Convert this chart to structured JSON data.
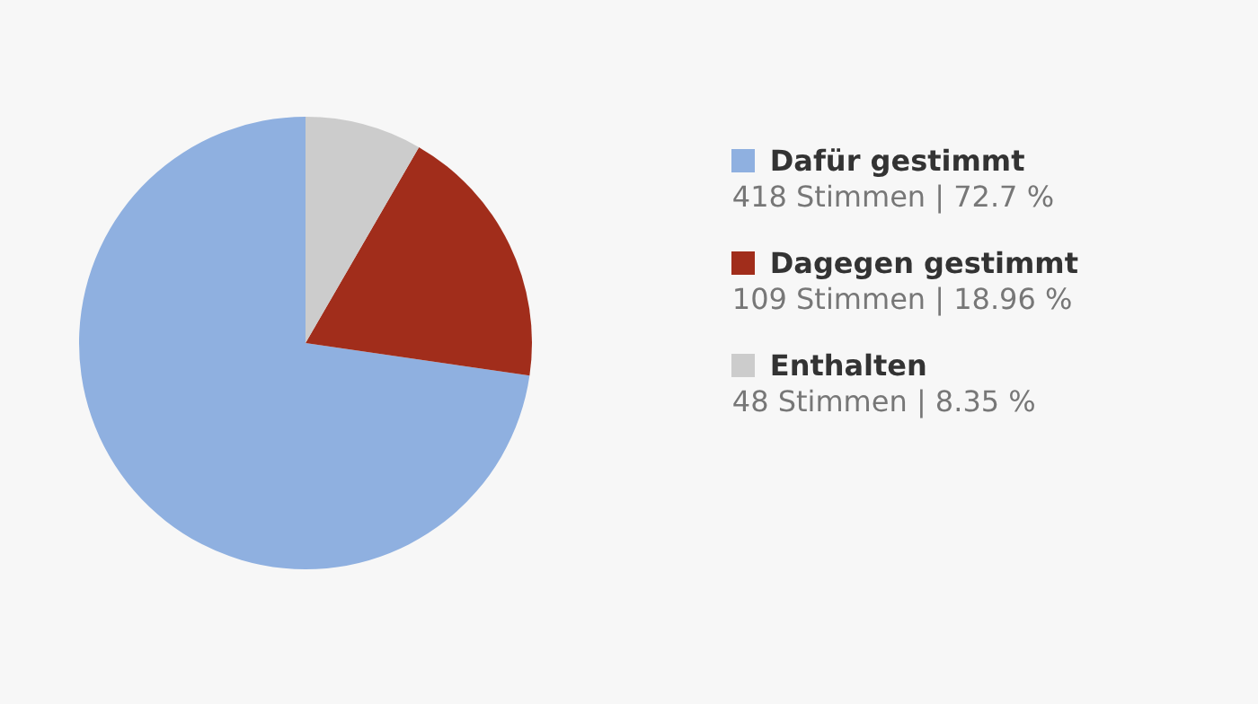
{
  "chart_data": {
    "type": "pie",
    "categories": [
      "Dafür gestimmt",
      "Dagegen gestimmt",
      "Enthalten"
    ],
    "values": [
      418,
      109,
      48
    ],
    "value_labels": [
      "418 Stimmen | 72.7 %",
      "109 Stimmen | 18.96 %",
      "48 Stimmen | 8.35 %"
    ],
    "colors": [
      "#8fb0e0",
      "#a12d1b",
      "#cccccc"
    ],
    "legend": "right"
  }
}
